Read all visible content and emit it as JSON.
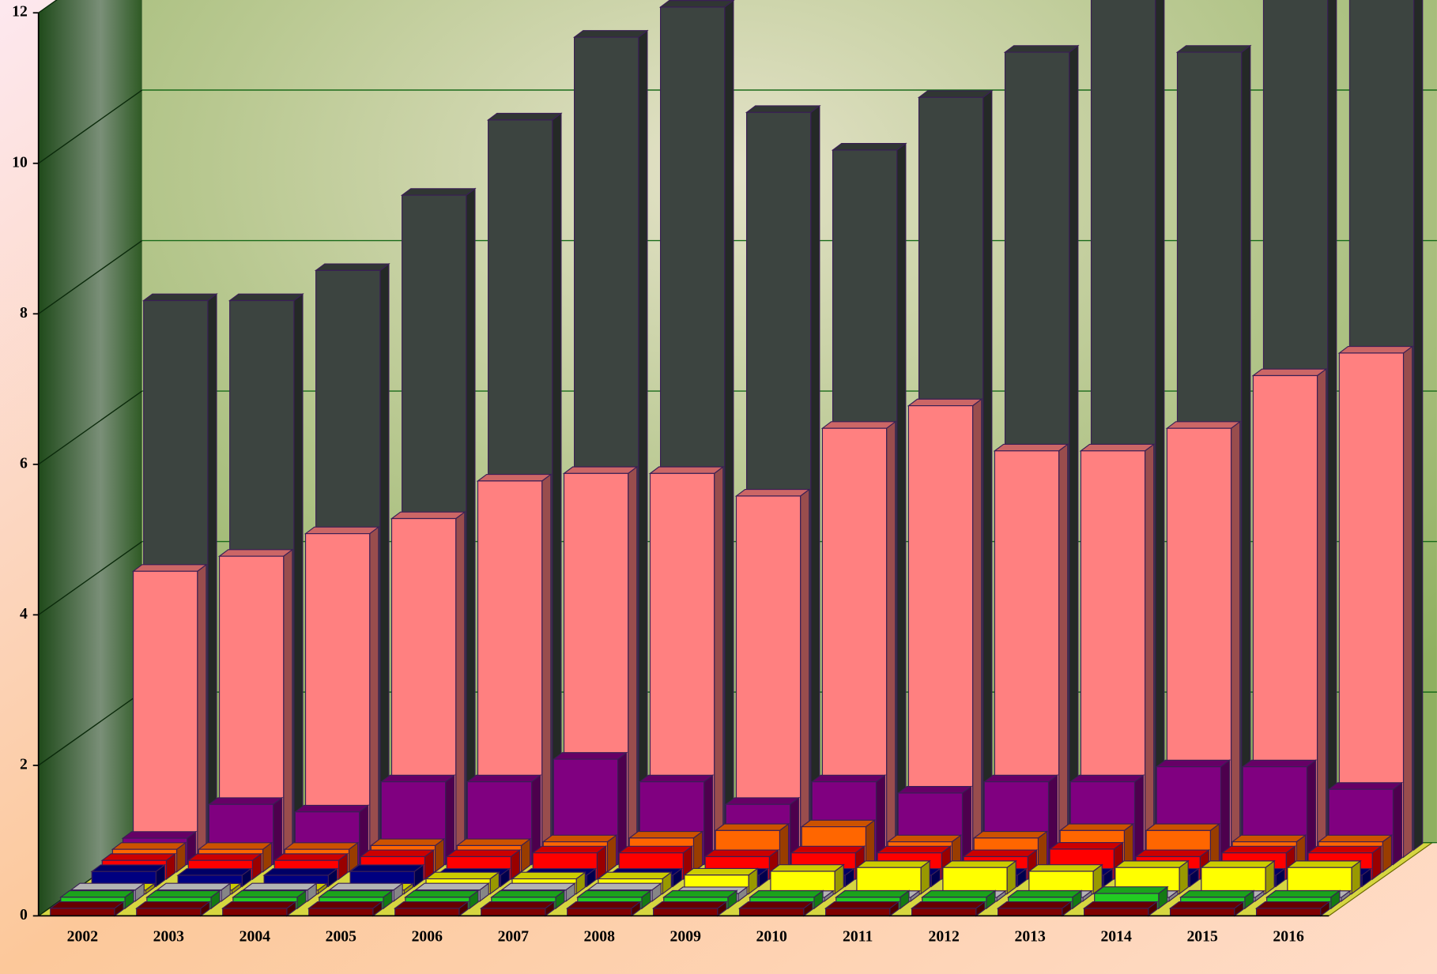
{
  "chart_data": {
    "type": "bar3d",
    "categories": [
      "2002",
      "2003",
      "2004",
      "2005",
      "2006",
      "2007",
      "2008",
      "2009",
      "2010",
      "2011",
      "2012",
      "2013",
      "2014",
      "2015",
      "2016"
    ],
    "ylim": [
      0,
      12
    ],
    "yticks": [
      0,
      2,
      4,
      6,
      8,
      10,
      12
    ],
    "grid": true,
    "series": [
      {
        "color": "#800000",
        "values": [
          0.1,
          0.1,
          0.1,
          0.1,
          0.1,
          0.1,
          0.1,
          0.1,
          0.1,
          0.1,
          0.1,
          0.1,
          0.1,
          0.1,
          0.1
        ]
      },
      {
        "color": "#22cc22",
        "values": [
          0.15,
          0.15,
          0.15,
          0.15,
          0.15,
          0.15,
          0.15,
          0.15,
          0.15,
          0.15,
          0.15,
          0.15,
          0.2,
          0.15,
          0.15
        ]
      },
      {
        "color": "#e0e0e0",
        "values": [
          0.15,
          0.15,
          0.15,
          0.15,
          0.15,
          0.15,
          0.15,
          0.1,
          0.05,
          0.05,
          0.05,
          0.05,
          0.05,
          0.05,
          0.05
        ]
      },
      {
        "color": "#ffff00",
        "values": [
          0.05,
          0.05,
          0.05,
          0.05,
          0.2,
          0.2,
          0.2,
          0.25,
          0.3,
          0.35,
          0.35,
          0.3,
          0.35,
          0.35,
          0.35
        ]
      },
      {
        "color": "#000080",
        "values": [
          0.2,
          0.15,
          0.15,
          0.2,
          0.15,
          0.15,
          0.15,
          0.15,
          0.15,
          0.15,
          0.15,
          0.15,
          0.15,
          0.15,
          0.15
        ]
      },
      {
        "color": "#ff0000",
        "values": [
          0.25,
          0.25,
          0.25,
          0.3,
          0.3,
          0.35,
          0.35,
          0.3,
          0.35,
          0.35,
          0.3,
          0.4,
          0.3,
          0.35,
          0.35
        ]
      },
      {
        "color": "#ff6600",
        "values": [
          0.3,
          0.3,
          0.3,
          0.35,
          0.35,
          0.4,
          0.45,
          0.55,
          0.6,
          0.4,
          0.45,
          0.55,
          0.55,
          0.4,
          0.4
        ]
      },
      {
        "color": "#800080",
        "values": [
          0.35,
          0.8,
          0.7,
          1.1,
          1.1,
          1.4,
          1.1,
          0.8,
          1.1,
          0.95,
          1.1,
          1.1,
          1.3,
          1.3,
          1.0
        ]
      },
      {
        "color": "#ff8080",
        "values": [
          3.8,
          4.0,
          4.3,
          4.5,
          5.0,
          5.1,
          5.1,
          4.8,
          5.7,
          6.0,
          5.4,
          5.4,
          5.7,
          6.4,
          6.7
        ]
      },
      {
        "color": "#3c4440",
        "values": [
          7.3,
          7.3,
          7.7,
          8.7,
          9.7,
          10.8,
          11.2,
          9.8,
          9.3,
          10.0,
          10.6,
          12.3,
          10.6,
          12.6,
          12.9
        ]
      }
    ]
  }
}
